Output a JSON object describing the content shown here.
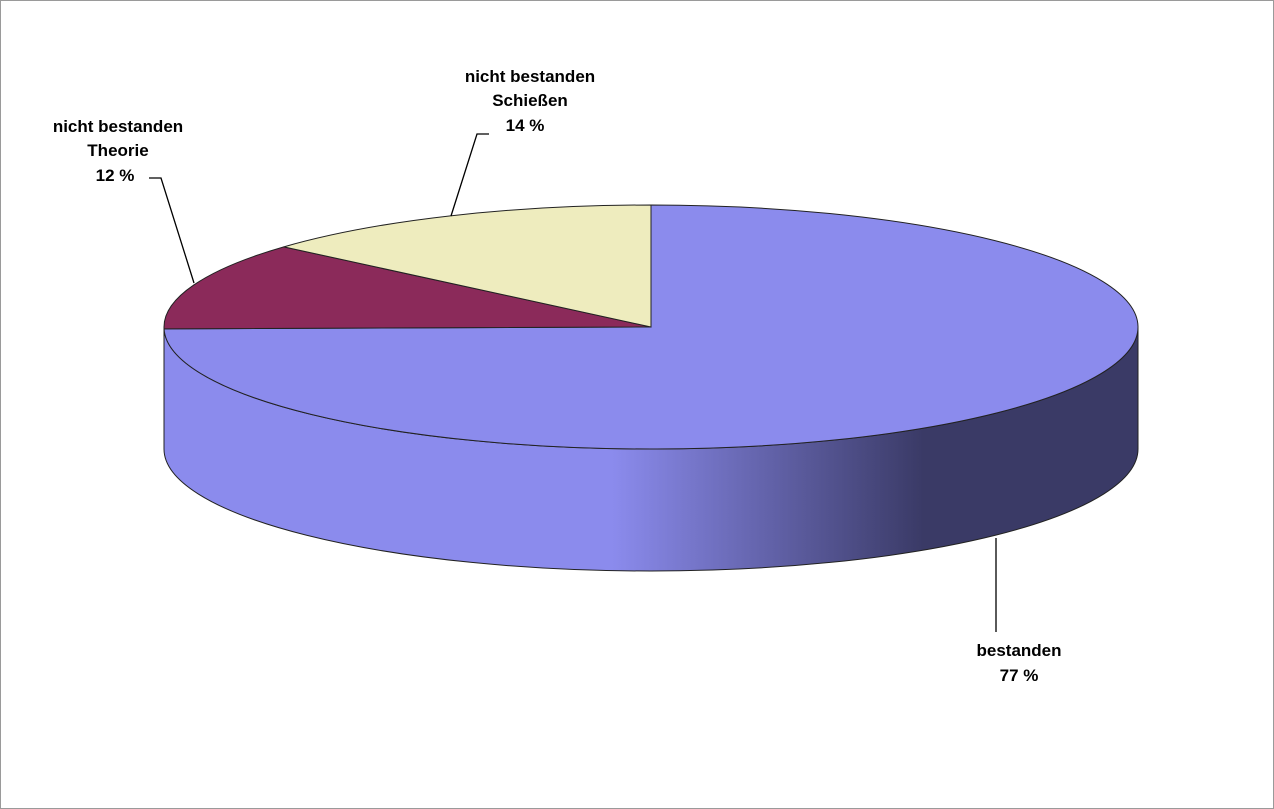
{
  "chart_data": {
    "type": "pie",
    "style": "3d",
    "title": "",
    "legend": false,
    "slices": [
      {
        "name": "bestanden",
        "value": 77,
        "label_line1": "bestanden",
        "label_line2": "",
        "label_value": "77  %",
        "color": "#8b8bed"
      },
      {
        "name": "nicht bestanden Theorie",
        "value": 12,
        "label_line1": "nicht bestanden",
        "label_line2": "Theorie",
        "label_value": "12  %",
        "color": "#8b2a5a"
      },
      {
        "name": "nicht bestanden Schießen",
        "value": 14,
        "label_line1": "nicht bestanden",
        "label_line2": "Schießen",
        "label_value": "14  %",
        "color": "#eeecbe"
      }
    ],
    "colors": {
      "bestanden_side_light": "#8b8bed",
      "bestanden_side_dark": "#3a3a66",
      "edge": "#222222",
      "frame": "#9a9a9a"
    }
  }
}
